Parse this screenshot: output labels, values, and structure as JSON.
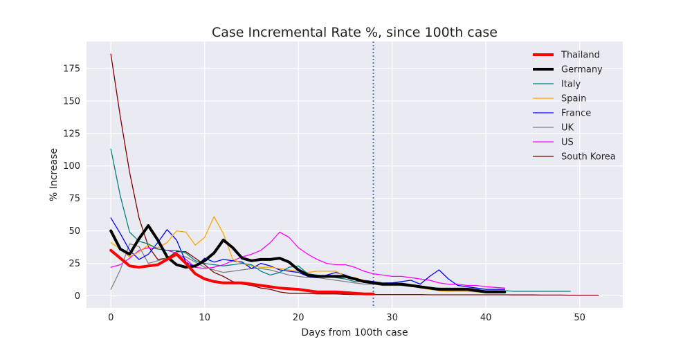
{
  "chart_data": {
    "type": "line",
    "title": "Case Incremental Rate %, since 100th case",
    "xlabel": "Days from 100th case",
    "ylabel": "% Increase",
    "xlim": [
      -2.6,
      54.6
    ],
    "ylim": [
      -9.3,
      195.7
    ],
    "xticks": [
      0,
      10,
      20,
      30,
      40,
      50
    ],
    "yticks": [
      0,
      25,
      50,
      75,
      100,
      125,
      150,
      175
    ],
    "grid": true,
    "legend_position": "top-right",
    "reference_line": {
      "x": 28,
      "style": "dotted",
      "color": "#4c72b0"
    },
    "series": [
      {
        "name": "Thailand",
        "color": "#ff0000",
        "width": 4,
        "x": [
          0,
          1,
          2,
          3,
          4,
          5,
          6,
          7,
          8,
          9,
          10,
          11,
          12,
          13,
          14,
          15,
          16,
          17,
          18,
          19,
          20,
          21,
          22,
          23,
          24,
          25,
          26,
          27,
          28
        ],
        "y": [
          35,
          29,
          23,
          22,
          23,
          24,
          28,
          32,
          25,
          17,
          13,
          11,
          10,
          10,
          10,
          9,
          8,
          7,
          6,
          5.5,
          5,
          4,
          3,
          3,
          3,
          2.5,
          2,
          1.5,
          1.5
        ]
      },
      {
        "name": "Germany",
        "color": "#000000",
        "width": 4,
        "x": [
          0,
          1,
          2,
          3,
          4,
          5,
          6,
          7,
          8,
          9,
          10,
          11,
          12,
          13,
          14,
          15,
          16,
          17,
          18,
          19,
          20,
          21,
          22,
          23,
          24,
          25,
          26,
          27,
          28,
          29,
          30,
          31,
          32,
          33,
          34,
          35,
          36,
          37,
          38,
          39,
          40,
          41,
          42
        ],
        "y": [
          50,
          36,
          32,
          44,
          54,
          43,
          30,
          24,
          22,
          23,
          27,
          33,
          43,
          37,
          29,
          27,
          28,
          28,
          29,
          26,
          20,
          16,
          15,
          15,
          15,
          15,
          13,
          11,
          10,
          9,
          9,
          9,
          8,
          7,
          6,
          5,
          5,
          5,
          5,
          4,
          3,
          3,
          3
        ]
      },
      {
        "name": "Italy",
        "color": "#008080",
        "width": 1.3,
        "x": [
          0,
          1,
          2,
          3,
          4,
          5,
          6,
          7,
          8,
          9,
          10,
          11,
          12,
          13,
          14,
          15,
          16,
          17,
          18,
          19,
          20,
          21,
          22,
          23,
          24,
          25,
          26,
          27,
          28,
          29,
          30,
          31,
          32,
          33,
          34,
          35,
          36,
          37,
          38,
          39,
          40,
          41,
          42,
          43,
          44,
          45,
          46,
          47,
          48,
          49
        ],
        "y": [
          113,
          77,
          49,
          42,
          40,
          36,
          35,
          35,
          33,
          27,
          25,
          24,
          23,
          24,
          25,
          24,
          19,
          16,
          18,
          22,
          23,
          17,
          16,
          15,
          14,
          13,
          11,
          11,
          10,
          10,
          9,
          8,
          8,
          7,
          6,
          6,
          5,
          5,
          5,
          5,
          4,
          4,
          4,
          3.5,
          3.5,
          3.5,
          3.5,
          3.5,
          3.5,
          3.5
        ]
      },
      {
        "name": "Spain",
        "color": "#ffa500",
        "width": 1.3,
        "x": [
          0,
          1,
          2,
          3,
          4,
          5,
          6,
          7,
          8,
          9,
          10,
          11,
          12,
          13,
          14,
          15,
          16,
          17,
          18,
          19,
          20,
          21,
          22,
          23,
          24,
          25,
          26,
          27,
          28,
          29,
          30,
          31,
          32,
          33,
          34,
          35,
          36,
          37,
          38,
          39,
          40,
          41,
          42
        ],
        "y": [
          41,
          36,
          30,
          34,
          39,
          37,
          41,
          50,
          49,
          39,
          45,
          61,
          48,
          28,
          25,
          23,
          22,
          22,
          21,
          20,
          19,
          18,
          19,
          19,
          19,
          15,
          14,
          12,
          10,
          10,
          9,
          9,
          8,
          6,
          5,
          4,
          3.5,
          3.5,
          3.5,
          3,
          3,
          3,
          3
        ]
      },
      {
        "name": "France",
        "color": "#0000ff",
        "width": 1.3,
        "x": [
          0,
          1,
          2,
          3,
          4,
          5,
          6,
          7,
          8,
          9,
          10,
          11,
          12,
          13,
          14,
          15,
          16,
          17,
          18,
          19,
          20,
          21,
          22,
          23,
          24,
          25,
          26,
          27,
          28,
          29,
          30,
          31,
          32,
          33,
          34,
          35,
          36,
          37,
          38,
          39,
          40,
          41,
          42
        ],
        "y": [
          60,
          48,
          35,
          28,
          32,
          41,
          51,
          43,
          26,
          22,
          29,
          26,
          28,
          27,
          26,
          21,
          25,
          23,
          20,
          19,
          18,
          15,
          14,
          16,
          18,
          16,
          13,
          12,
          11,
          10,
          10,
          11,
          12,
          9,
          15,
          20,
          13,
          8,
          7,
          6,
          5,
          5,
          5
        ]
      },
      {
        "name": "UK",
        "color": "#808080",
        "width": 1.3,
        "x": [
          0,
          1,
          2,
          3,
          4,
          5,
          6,
          7,
          8,
          9,
          10,
          11,
          12,
          13,
          14,
          15,
          16,
          17,
          18,
          19,
          20,
          21,
          22,
          23,
          24,
          25,
          26,
          27,
          28,
          29,
          30,
          31,
          32,
          33,
          34,
          35,
          36,
          37,
          38,
          39,
          40,
          41,
          42
        ],
        "y": [
          5,
          20,
          40,
          38,
          25,
          27,
          29,
          31,
          30,
          26,
          22,
          20,
          18,
          19,
          20,
          21,
          21,
          20,
          18,
          16,
          15,
          14,
          14,
          13,
          12,
          11,
          10,
          9,
          9,
          8,
          8,
          8,
          7,
          7,
          6,
          6,
          6,
          6,
          6,
          6,
          5,
          5,
          5
        ]
      },
      {
        "name": "US",
        "color": "#ff00ff",
        "width": 1.3,
        "x": [
          0,
          1,
          2,
          3,
          4,
          5,
          6,
          7,
          8,
          9,
          10,
          11,
          12,
          13,
          14,
          15,
          16,
          17,
          18,
          19,
          20,
          21,
          22,
          23,
          24,
          25,
          26,
          27,
          28,
          29,
          30,
          31,
          32,
          33,
          34,
          35,
          36,
          37,
          38,
          39,
          40,
          41,
          42
        ],
        "y": [
          22,
          24,
          29,
          35,
          37,
          36,
          35,
          33,
          28,
          22,
          21,
          22,
          24,
          27,
          30,
          32,
          35,
          41,
          49,
          45,
          37,
          32,
          28,
          25,
          24,
          24,
          22,
          19,
          17,
          16,
          15,
          15,
          14,
          13,
          12,
          10,
          9,
          9,
          8,
          8,
          7,
          6.5,
          6
        ]
      },
      {
        "name": "South Korea",
        "color": "#800000",
        "width": 1.3,
        "x": [
          0,
          1,
          2,
          3,
          4,
          5,
          6,
          7,
          8,
          9,
          10,
          11,
          12,
          13,
          14,
          15,
          16,
          17,
          18,
          19,
          20,
          21,
          22,
          23,
          24,
          25,
          26,
          27,
          28,
          29,
          30,
          31,
          32,
          33,
          34,
          35,
          36,
          37,
          38,
          39,
          40,
          41,
          42,
          43,
          44,
          45,
          46,
          47,
          48,
          49,
          50,
          51,
          52
        ],
        "y": [
          186,
          138,
          95,
          60,
          38,
          28,
          29,
          34,
          34,
          29,
          24,
          18,
          15,
          11,
          9,
          8,
          6,
          5,
          3,
          2,
          2,
          2,
          1.5,
          1.5,
          1.5,
          1.2,
          1,
          1,
          1,
          1,
          1,
          1,
          1,
          1,
          0.8,
          0.8,
          0.8,
          0.8,
          0.8,
          0.8,
          0.8,
          0.8,
          0.8,
          0.7,
          0.7,
          0.7,
          0.6,
          0.6,
          0.6,
          0.5,
          0.5,
          0.5,
          0.5
        ]
      }
    ]
  }
}
